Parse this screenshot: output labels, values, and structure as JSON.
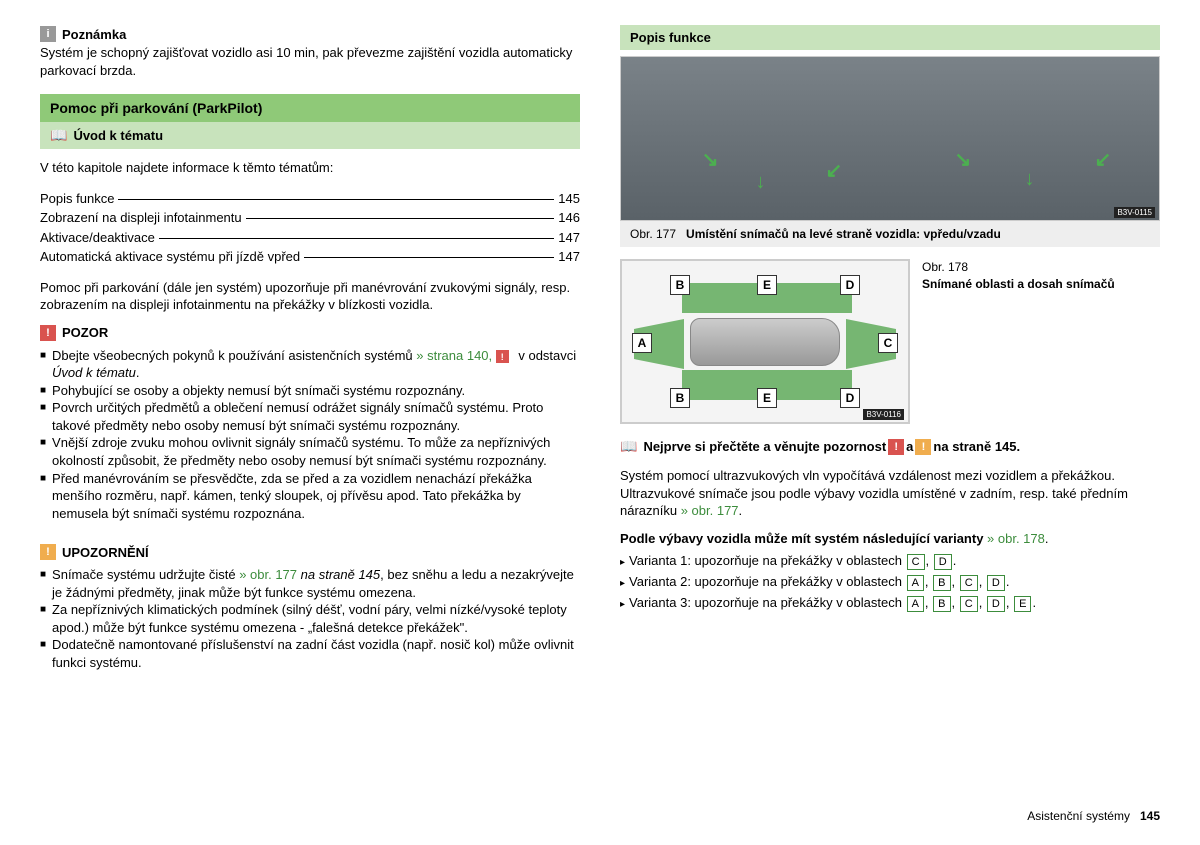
{
  "left": {
    "note_icon_label": "i",
    "note_heading": "Poznámka",
    "note_text": "Systém je schopný zajišťovat vozidlo asi 10 min, pak převezme zajištění vozidla automaticky parkovací brzda.",
    "section_title": "Pomoc při parkování (ParkPilot)",
    "subsection_title": "Úvod k tématu",
    "toc_intro": "V této kapitole najdete informace k těmto tématům:",
    "toc": [
      {
        "label": "Popis funkce",
        "page": "145"
      },
      {
        "label": "Zobrazení na displeji infotainmentu",
        "page": "146"
      },
      {
        "label": "Aktivace/deaktivace",
        "page": "147"
      },
      {
        "label": "Automatická aktivace systému při jízdě vpřed",
        "page": "147"
      }
    ],
    "intro_para": "Pomoc při parkování (dále jen systém) upozorňuje při manévrování zvukovými signály, resp. zobrazením na displeji infotainmentu na překážky v blízkosti vozidla.",
    "pozor_heading": "POZOR",
    "pozor_items": [
      {
        "pre": "Dbejte všeobecných pokynů k používání asistenčních systémů ",
        "link": "» strana 140, ",
        "post_icon": true,
        "tail": " v odstavci ",
        "italic": "Úvod k tématu",
        "end": "."
      },
      {
        "pre": "Pohybující se osoby a objekty nemusí být snímači systému rozpoznány."
      },
      {
        "pre": "Povrch určitých předmětů a oblečení nemusí odrážet signály snímačů systému. Proto takové předměty nebo osoby nemusí být snímači systému rozpoznány."
      },
      {
        "pre": "Vnější zdroje zvuku mohou ovlivnit signály snímačů systému. To může za nepříznivých okolností způsobit, že předměty nebo osoby nemusí být snímači systému rozpoznány."
      },
      {
        "pre": "Před manévrováním se přesvědčte, zda se před a za vozidlem nenachází překážka menšího rozměru, např. kámen, tenký sloupek, oj přívěsu apod. Tato překážka by nemusela být snímači systému rozpoznána."
      }
    ],
    "upoz_heading": "UPOZORNĚNÍ",
    "upoz_items": [
      {
        "pre": "Snímače systému udržujte čisté ",
        "link": "» obr. 177 ",
        "italic": "na straně 145",
        "tail": ", bez sněhu a ledu a nezakrývejte je žádnými předměty, jinak může být funkce systému omezena."
      },
      {
        "pre": "Za nepříznivých klimatických podmínek (silný déšť, vodní páry, velmi nízké/vysoké teploty apod.) může být funkce systému omezena - „falešná detekce překážek\"."
      },
      {
        "pre": "Dodatečně namontované příslušenství na zadní část vozidla (např. nosič kol) může ovlivnit funkci systému."
      }
    ]
  },
  "right": {
    "section_title": "Popis funkce",
    "fig177_num": "Obr. 177",
    "fig177_caption": "Umístění snímačů na levé straně vozidla: vpředu/vzadu",
    "fig177_code": "B3V-0115",
    "fig178_num": "Obr. 178",
    "fig178_caption": "Snímané oblasti a dosah snímačů",
    "fig178_code": "B3V-0116",
    "sensor_labels": {
      "A": "A",
      "B": "B",
      "C": "C",
      "D": "D",
      "E": "E"
    },
    "read_first": "Nejprve si přečtěte a věnujte pozornost ",
    "read_first_tail": " na straně 145.",
    "read_first_and": " a ",
    "desc_para": "Systém pomocí ultrazvukových vln vypočítává vzdálenost mezi vozidlem a překážkou. Ultrazvukové snímače jsou podle výbavy vozidla umístěné v zadním, resp. také předním nárazníku ",
    "desc_link": "» obr. 177",
    "variants_intro": "Podle výbavy vozidla může mít systém následující varianty ",
    "variants_link": "» obr. 178",
    "variants": [
      {
        "label": "Varianta 1: upozorňuje na překážky v oblastech ",
        "boxes": [
          "C",
          "D"
        ]
      },
      {
        "label": "Varianta 2: upozorňuje na překážky v oblastech ",
        "boxes": [
          "A",
          "B",
          "C",
          "D"
        ]
      },
      {
        "label": "Varianta 3: upozorňuje na překážky v oblastech ",
        "boxes": [
          "A",
          "B",
          "C",
          "D",
          "E"
        ]
      }
    ]
  },
  "footer": {
    "section": "Asistenční systémy",
    "page": "145"
  }
}
